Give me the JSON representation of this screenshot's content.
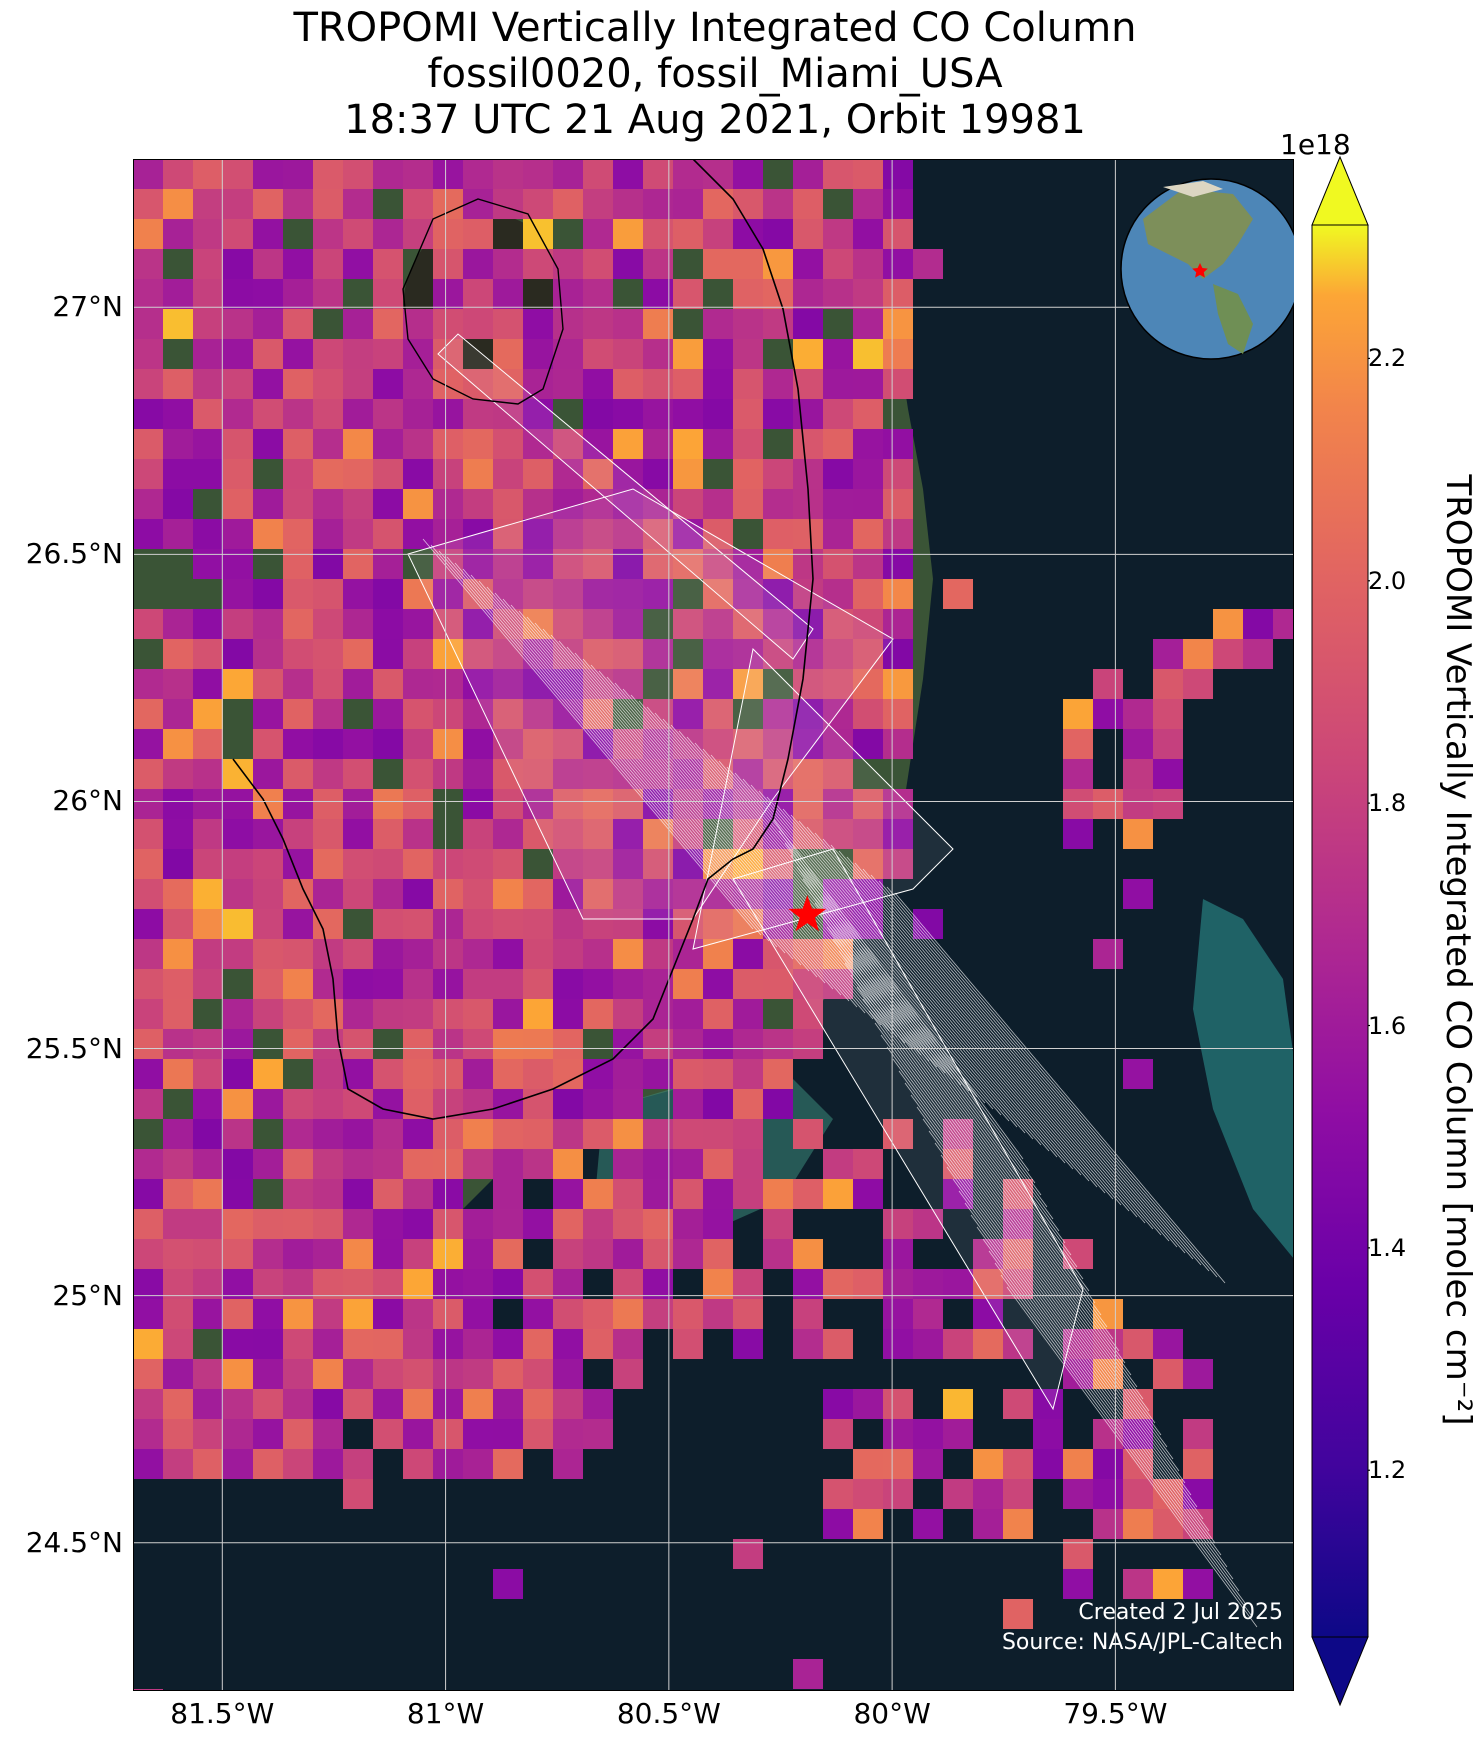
{
  "title": {
    "line1": "TROPOMI Vertically Integrated CO Column",
    "line2": "fossil0020, fossil_Miami_USA",
    "line3": "18:37 UTC 21 Aug 2021, Orbit 19981"
  },
  "map": {
    "extent_lon": [
      -81.7,
      -79.1
    ],
    "extent_lat": [
      24.2,
      27.3
    ],
    "lat_ticks": [
      {
        "value": 27.0,
        "label": "27°N"
      },
      {
        "value": 26.5,
        "label": "26.5°N"
      },
      {
        "value": 26.0,
        "label": "26°N"
      },
      {
        "value": 25.5,
        "label": "25.5°N"
      },
      {
        "value": 25.0,
        "label": "25°N"
      },
      {
        "value": 24.5,
        "label": "24.5°N"
      }
    ],
    "lon_ticks": [
      {
        "value": -81.5,
        "label": "81.5°W"
      },
      {
        "value": -81.0,
        "label": "81°W"
      },
      {
        "value": -80.5,
        "label": "80.5°W"
      },
      {
        "value": -80.0,
        "label": "80°W"
      },
      {
        "value": -79.5,
        "label": "79.5°W"
      }
    ],
    "site_marker": {
      "lon": -80.19,
      "lat": 25.77,
      "color": "#ff0000",
      "icon": "star-icon"
    },
    "ocean_color": "#0d1e2b",
    "inset": "globe-icon"
  },
  "colorbar": {
    "label": "TROPOMI Vertically Integrated CO Column [molec cm⁻²]",
    "exponent": "1e18",
    "min": 1.05,
    "max": 2.32,
    "ticks": [
      "2.2",
      "2.0",
      "1.8",
      "1.6",
      "1.4",
      "1.2"
    ],
    "tick_values": [
      2.2,
      2.0,
      1.8,
      1.6,
      1.4,
      1.2
    ],
    "colormap": "plasma"
  },
  "credits": {
    "created": "Created 2 Jul 2025",
    "source": "Source: NASA/JPL-Caltech"
  }
}
